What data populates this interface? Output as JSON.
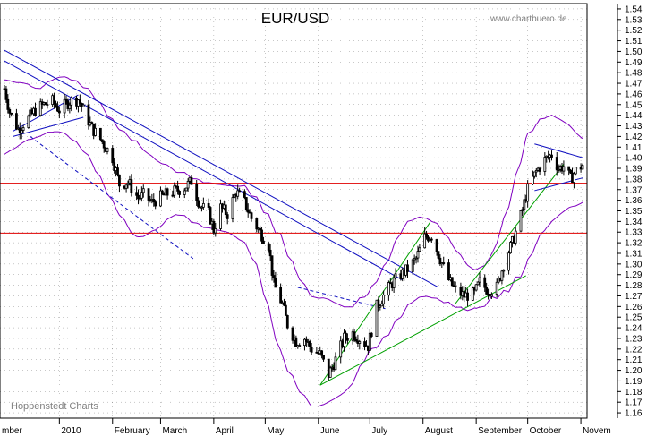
{
  "chart_data": {
    "type": "candlestick",
    "title": "EUR/USD",
    "watermark": "www.chartbuero.de",
    "source": "Hoppenstedt Charts",
    "y_axis": {
      "min": 1.155,
      "max": 1.545,
      "ticks": [
        1.16,
        1.17,
        1.18,
        1.19,
        1.2,
        1.21,
        1.22,
        1.23,
        1.24,
        1.25,
        1.26,
        1.27,
        1.28,
        1.29,
        1.3,
        1.31,
        1.32,
        1.33,
        1.34,
        1.35,
        1.36,
        1.37,
        1.38,
        1.39,
        1.4,
        1.41,
        1.42,
        1.43,
        1.44,
        1.45,
        1.46,
        1.47,
        1.48,
        1.49,
        1.5,
        1.51,
        1.52,
        1.53,
        1.54
      ],
      "tick_labels": [
        "1.16",
        "1.17",
        "1.18",
        "1.19",
        "1.20",
        "1.21",
        "1.22",
        "1.23",
        "1.24",
        "1.25",
        "1.26",
        "1.27",
        "1.28",
        "1.29",
        "1.30",
        "1.31",
        "1.32",
        "1.33",
        "1.34",
        "1.35",
        "1.36",
        "1.37",
        "1.38",
        "1.39",
        "1.40",
        "1.41",
        "1.42",
        "1.43",
        "1.44",
        "1.45",
        "1.46",
        "1.47",
        "1.48",
        "1.49",
        "1.50",
        "1.51",
        "1.52",
        "1.53",
        "1.54"
      ],
      "position": "right"
    },
    "x_axis": {
      "start": "2009-11-30",
      "end": "2010-11-02",
      "months": [
        {
          "date": "2010-01-01",
          "label": "2010"
        },
        {
          "date": "2010-02-01",
          "label": "February"
        },
        {
          "date": "2010-03-01",
          "label": "March"
        },
        {
          "date": "2010-04-01",
          "label": "April"
        },
        {
          "date": "2010-05-01",
          "label": "May"
        },
        {
          "date": "2010-06-01",
          "label": "June"
        },
        {
          "date": "2010-07-01",
          "label": "July"
        },
        {
          "date": "2010-08-01",
          "label": "August"
        },
        {
          "date": "2010-09-01",
          "label": "September"
        },
        {
          "date": "2010-10-01",
          "label": "October"
        },
        {
          "date": "2010-11-01",
          "label": "Novem"
        }
      ],
      "left_partial_label": "mber"
    },
    "price_path": [
      [
        "2009-11-30",
        1.465
      ],
      [
        "2009-12-03",
        1.443
      ],
      [
        "2009-12-08",
        1.427
      ],
      [
        "2009-12-14",
        1.437
      ],
      [
        "2009-12-18",
        1.445
      ],
      [
        "2009-12-23",
        1.45
      ],
      [
        "2009-12-28",
        1.453
      ],
      [
        "2010-01-01",
        1.445
      ],
      [
        "2010-01-07",
        1.453
      ],
      [
        "2010-01-12",
        1.455
      ],
      [
        "2010-01-15",
        1.445
      ],
      [
        "2010-01-20",
        1.428
      ],
      [
        "2010-01-26",
        1.415
      ],
      [
        "2010-02-01",
        1.4
      ],
      [
        "2010-02-05",
        1.375
      ],
      [
        "2010-02-10",
        1.377
      ],
      [
        "2010-02-16",
        1.362
      ],
      [
        "2010-02-19",
        1.365
      ],
      [
        "2010-02-24",
        1.358
      ],
      [
        "2010-03-01",
        1.363
      ],
      [
        "2010-03-05",
        1.366
      ],
      [
        "2010-03-10",
        1.369
      ],
      [
        "2010-03-15",
        1.372
      ],
      [
        "2010-03-19",
        1.378
      ],
      [
        "2010-03-24",
        1.355
      ],
      [
        "2010-03-29",
        1.348
      ],
      [
        "2010-04-01",
        1.332
      ],
      [
        "2010-04-05",
        1.353
      ],
      [
        "2010-04-09",
        1.347
      ],
      [
        "2010-04-14",
        1.368
      ],
      [
        "2010-04-19",
        1.358
      ],
      [
        "2010-04-23",
        1.343
      ],
      [
        "2010-04-28",
        1.33
      ],
      [
        "2010-05-03",
        1.318
      ],
      [
        "2010-05-06",
        1.281
      ],
      [
        "2010-05-11",
        1.262
      ],
      [
        "2010-05-14",
        1.243
      ],
      [
        "2010-05-19",
        1.227
      ],
      [
        "2010-05-24",
        1.23
      ],
      [
        "2010-05-28",
        1.22
      ],
      [
        "2010-06-02",
        1.215
      ],
      [
        "2010-06-07",
        1.196
      ],
      [
        "2010-06-11",
        1.21
      ],
      [
        "2010-06-16",
        1.23
      ],
      [
        "2010-06-21",
        1.235
      ],
      [
        "2010-06-25",
        1.23
      ],
      [
        "2010-06-30",
        1.223
      ],
      [
        "2010-07-05",
        1.26
      ],
      [
        "2010-07-09",
        1.27
      ],
      [
        "2010-07-14",
        1.282
      ],
      [
        "2010-07-19",
        1.29
      ],
      [
        "2010-07-23",
        1.295
      ],
      [
        "2010-07-28",
        1.305
      ],
      [
        "2010-08-02",
        1.325
      ],
      [
        "2010-08-06",
        1.327
      ],
      [
        "2010-08-11",
        1.305
      ],
      [
        "2010-08-16",
        1.285
      ],
      [
        "2010-08-20",
        1.275
      ],
      [
        "2010-08-25",
        1.27
      ],
      [
        "2010-08-31",
        1.272
      ],
      [
        "2010-09-03",
        1.283
      ],
      [
        "2010-09-08",
        1.275
      ],
      [
        "2010-09-13",
        1.278
      ],
      [
        "2010-09-17",
        1.3
      ],
      [
        "2010-09-22",
        1.32
      ],
      [
        "2010-09-27",
        1.345
      ],
      [
        "2010-10-01",
        1.37
      ],
      [
        "2010-10-06",
        1.387
      ],
      [
        "2010-10-11",
        1.398
      ],
      [
        "2010-10-15",
        1.403
      ],
      [
        "2010-10-19",
        1.39
      ],
      [
        "2010-10-22",
        1.392
      ],
      [
        "2010-10-26",
        1.38
      ],
      [
        "2010-10-29",
        1.388
      ],
      [
        "2010-11-02",
        1.393
      ]
    ],
    "bollinger_width": [
      [
        "2009-11-30",
        0.035
      ],
      [
        "2009-12-20",
        0.022
      ],
      [
        "2010-01-15",
        0.03
      ],
      [
        "2010-02-15",
        0.045
      ],
      [
        "2010-03-10",
        0.02
      ],
      [
        "2010-04-10",
        0.022
      ],
      [
        "2010-04-25",
        0.03
      ],
      [
        "2010-05-10",
        0.055
      ],
      [
        "2010-06-05",
        0.05
      ],
      [
        "2010-06-30",
        0.028
      ],
      [
        "2010-07-20",
        0.04
      ],
      [
        "2010-08-10",
        0.035
      ],
      [
        "2010-08-31",
        0.018
      ],
      [
        "2010-09-10",
        0.02
      ],
      [
        "2010-09-30",
        0.06
      ],
      [
        "2010-10-15",
        0.05
      ],
      [
        "2010-11-02",
        0.03
      ]
    ],
    "horizontal_lines": [
      {
        "value": 1.376,
        "color": "#e00000"
      },
      {
        "value": 1.329,
        "color": "#e00000"
      }
    ],
    "trend_lines": [
      {
        "from": [
          "2009-11-30",
          1.501
        ],
        "to": [
          "2010-08-10",
          1.278
        ],
        "color": "#1010c0",
        "style": "solid"
      },
      {
        "from": [
          "2009-11-30",
          1.491
        ],
        "to": [
          "2010-07-20",
          1.285
        ],
        "color": "#1010c0",
        "style": "solid"
      },
      {
        "from": [
          "2009-12-05",
          1.425
        ],
        "to": [
          "2010-01-12",
          1.459
        ],
        "color": "#1010c0",
        "style": "solid"
      },
      {
        "from": [
          "2009-12-05",
          1.42
        ],
        "to": [
          "2010-01-15",
          1.438
        ],
        "color": "#1010c0",
        "style": "solid"
      },
      {
        "from": [
          "2009-12-15",
          1.42
        ],
        "to": [
          "2010-03-20",
          1.305
        ],
        "color": "#1010c0",
        "style": "dashed"
      },
      {
        "from": [
          "2010-05-20",
          1.278
        ],
        "to": [
          "2010-07-10",
          1.258
        ],
        "color": "#1010c0",
        "style": "dashed"
      },
      {
        "from": [
          "2010-06-02",
          1.186
        ],
        "to": [
          "2010-08-05",
          1.339
        ],
        "color": "#00a000",
        "style": "solid"
      },
      {
        "from": [
          "2010-06-02",
          1.186
        ],
        "to": [
          "2010-09-30",
          1.289
        ],
        "color": "#00a000",
        "style": "solid"
      },
      {
        "from": [
          "2010-08-20",
          1.263
        ],
        "to": [
          "2010-10-22",
          1.394
        ],
        "color": "#00a000",
        "style": "solid"
      },
      {
        "from": [
          "2010-10-05",
          1.413
        ],
        "to": [
          "2010-11-02",
          1.4
        ],
        "color": "#1010c0",
        "style": "solid"
      },
      {
        "from": [
          "2010-10-05",
          1.369
        ],
        "to": [
          "2010-11-02",
          1.381
        ],
        "color": "#1010c0",
        "style": "solid"
      }
    ],
    "colors": {
      "candle": "#000000",
      "bollinger": "#8000c0",
      "grid": "#000000",
      "background": "#ffffff"
    },
    "grid": "dotted",
    "legend": "none"
  }
}
